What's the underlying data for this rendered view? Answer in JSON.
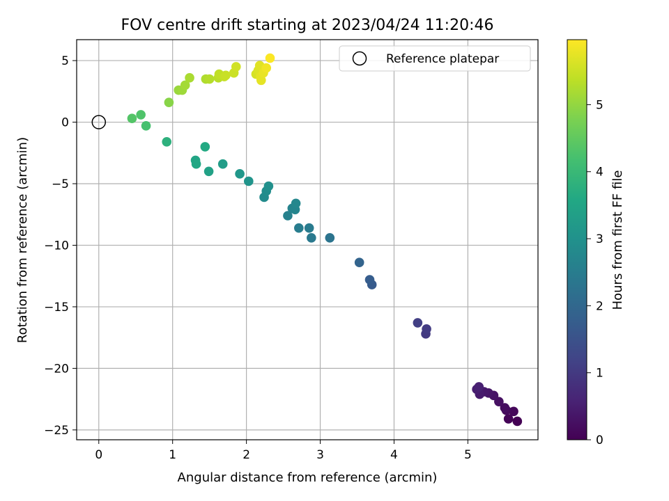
{
  "chart_data": {
    "type": "scatter",
    "title": "FOV centre drift starting at 2023/04/24 11:20:46",
    "xlabel": "Angular distance from reference (arcmin)",
    "ylabel": "Rotation from reference (arcmin)",
    "xlim": [
      -0.3,
      5.95
    ],
    "ylim": [
      -25.8,
      6.7
    ],
    "xticks": [
      0,
      1,
      2,
      3,
      4,
      5
    ],
    "yticks": [
      -25,
      -20,
      -15,
      -10,
      -5,
      0,
      5
    ],
    "grid": true,
    "legend": {
      "placement": "top-right",
      "label": "Reference platepar"
    },
    "reference_point": {
      "x": 0,
      "y": 0
    },
    "colorbar": {
      "label": "Hours from first FF file",
      "range": [
        0,
        5.97
      ],
      "ticks": [
        0,
        1,
        2,
        3,
        4,
        5
      ],
      "colormap": "viridis"
    },
    "points": [
      {
        "x": 5.67,
        "y": -24.3,
        "c": 0.0
      },
      {
        "x": 5.55,
        "y": -24.1,
        "c": 0.05
      },
      {
        "x": 5.62,
        "y": -23.5,
        "c": 0.1
      },
      {
        "x": 5.52,
        "y": -23.4,
        "c": 0.15
      },
      {
        "x": 5.5,
        "y": -23.2,
        "c": 0.2
      },
      {
        "x": 5.42,
        "y": -22.7,
        "c": 0.25
      },
      {
        "x": 5.35,
        "y": -22.2,
        "c": 0.3
      },
      {
        "x": 5.28,
        "y": -22.0,
        "c": 0.35
      },
      {
        "x": 5.22,
        "y": -21.9,
        "c": 0.4
      },
      {
        "x": 5.16,
        "y": -22.1,
        "c": 0.45
      },
      {
        "x": 5.12,
        "y": -21.7,
        "c": 0.5
      },
      {
        "x": 5.15,
        "y": -21.5,
        "c": 0.55
      },
      {
        "x": 4.43,
        "y": -17.2,
        "c": 1.0
      },
      {
        "x": 4.44,
        "y": -16.8,
        "c": 1.05
      },
      {
        "x": 4.32,
        "y": -16.3,
        "c": 1.1
      },
      {
        "x": 3.7,
        "y": -13.2,
        "c": 1.7
      },
      {
        "x": 3.67,
        "y": -12.8,
        "c": 1.75
      },
      {
        "x": 3.53,
        "y": -11.4,
        "c": 1.9
      },
      {
        "x": 3.13,
        "y": -9.4,
        "c": 2.3
      },
      {
        "x": 2.88,
        "y": -9.4,
        "c": 2.4
      },
      {
        "x": 2.85,
        "y": -8.6,
        "c": 2.45
      },
      {
        "x": 2.71,
        "y": -8.6,
        "c": 2.5
      },
      {
        "x": 2.56,
        "y": -7.6,
        "c": 2.6
      },
      {
        "x": 2.62,
        "y": -7.0,
        "c": 2.65
      },
      {
        "x": 2.66,
        "y": -7.1,
        "c": 2.7
      },
      {
        "x": 2.67,
        "y": -6.6,
        "c": 2.75
      },
      {
        "x": 2.24,
        "y": -6.1,
        "c": 2.85
      },
      {
        "x": 2.27,
        "y": -5.6,
        "c": 2.9
      },
      {
        "x": 2.3,
        "y": -5.2,
        "c": 2.95
      },
      {
        "x": 2.03,
        "y": -4.8,
        "c": 3.05
      },
      {
        "x": 1.91,
        "y": -4.2,
        "c": 3.15
      },
      {
        "x": 1.68,
        "y": -3.4,
        "c": 3.3
      },
      {
        "x": 1.49,
        "y": -4.0,
        "c": 3.4
      },
      {
        "x": 1.31,
        "y": -3.1,
        "c": 3.5
      },
      {
        "x": 1.32,
        "y": -3.4,
        "c": 3.55
      },
      {
        "x": 1.44,
        "y": -2.0,
        "c": 3.6
      },
      {
        "x": 0.92,
        "y": -1.6,
        "c": 3.8
      },
      {
        "x": 0.64,
        "y": -0.3,
        "c": 4.2
      },
      {
        "x": 0.57,
        "y": 0.6,
        "c": 4.3
      },
      {
        "x": 0.45,
        "y": 0.3,
        "c": 4.35
      },
      {
        "x": 0.95,
        "y": 1.6,
        "c": 4.9
      },
      {
        "x": 1.08,
        "y": 2.6,
        "c": 5.05
      },
      {
        "x": 1.13,
        "y": 2.6,
        "c": 5.1
      },
      {
        "x": 1.17,
        "y": 3.0,
        "c": 5.15
      },
      {
        "x": 1.23,
        "y": 3.6,
        "c": 5.2
      },
      {
        "x": 1.45,
        "y": 3.5,
        "c": 5.25
      },
      {
        "x": 1.5,
        "y": 3.5,
        "c": 5.3
      },
      {
        "x": 1.62,
        "y": 3.6,
        "c": 5.35
      },
      {
        "x": 1.63,
        "y": 3.9,
        "c": 5.4
      },
      {
        "x": 1.7,
        "y": 3.7,
        "c": 5.45
      },
      {
        "x": 1.72,
        "y": 3.8,
        "c": 5.48
      },
      {
        "x": 1.83,
        "y": 4.0,
        "c": 5.5
      },
      {
        "x": 1.86,
        "y": 4.5,
        "c": 5.55
      },
      {
        "x": 2.13,
        "y": 3.9,
        "c": 5.6
      },
      {
        "x": 2.16,
        "y": 4.2,
        "c": 5.65
      },
      {
        "x": 2.18,
        "y": 4.6,
        "c": 5.7
      },
      {
        "x": 2.19,
        "y": 3.7,
        "c": 5.72
      },
      {
        "x": 2.2,
        "y": 3.4,
        "c": 5.75
      },
      {
        "x": 2.23,
        "y": 4.0,
        "c": 5.78
      },
      {
        "x": 2.27,
        "y": 4.4,
        "c": 5.85
      },
      {
        "x": 2.32,
        "y": 5.2,
        "c": 5.95
      }
    ]
  }
}
